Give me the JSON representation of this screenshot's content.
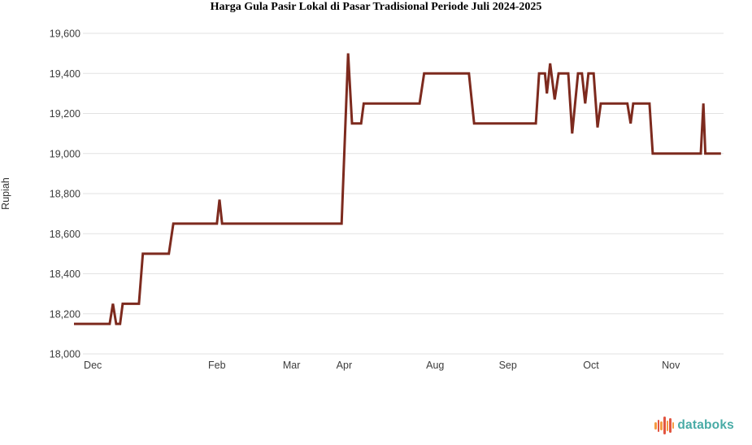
{
  "title": "Harga Gula Pasir Lokal di Pasar Tradisional Periode Juli 2024-2025",
  "chart_data": {
    "type": "line",
    "title": "Harga Gula Pasir Lokal di Pasar Tradisional Periode Juli 2024-2025",
    "xlabel": "",
    "ylabel": "Rupiah",
    "ylim": [
      18000,
      19600
    ],
    "grid": true,
    "legend": false,
    "line_color": "#7D2A1E",
    "grid_color": "#E2E2E2",
    "tick_color": "#3C3C3C",
    "y_ticks": [
      {
        "value": 18000,
        "label": "18,000"
      },
      {
        "value": 18200,
        "label": "18,200"
      },
      {
        "value": 18400,
        "label": "18,400"
      },
      {
        "value": 18600,
        "label": "18,600"
      },
      {
        "value": 18800,
        "label": "18,800"
      },
      {
        "value": 19000,
        "label": "19,000"
      },
      {
        "value": 19200,
        "label": "19,200"
      },
      {
        "value": 19400,
        "label": "19,400"
      },
      {
        "value": 19600,
        "label": "19,600"
      }
    ],
    "x_ticks": [
      {
        "label": "Dec",
        "t": 2.9
      },
      {
        "label": "Feb",
        "t": 22.0
      },
      {
        "label": "Mar",
        "t": 33.5
      },
      {
        "label": "Apr",
        "t": 41.6
      },
      {
        "label": "Aug",
        "t": 55.6
      },
      {
        "label": "Sep",
        "t": 66.8
      },
      {
        "label": "Oct",
        "t": 79.6
      },
      {
        "label": "Nov",
        "t": 91.9
      }
    ],
    "series": [
      {
        "points": [
          [
            0.0,
            18150
          ],
          [
            5.5,
            18150
          ],
          [
            6.0,
            18250
          ],
          [
            6.5,
            18150
          ],
          [
            7.1,
            18150
          ],
          [
            7.5,
            18250
          ],
          [
            10.0,
            18250
          ],
          [
            10.6,
            18500
          ],
          [
            14.6,
            18500
          ],
          [
            15.3,
            18650
          ],
          [
            22.0,
            18650
          ],
          [
            22.4,
            18770
          ],
          [
            22.8,
            18650
          ],
          [
            41.2,
            18650
          ],
          [
            42.2,
            19500
          ],
          [
            42.8,
            19150
          ],
          [
            44.2,
            19150
          ],
          [
            44.6,
            19250
          ],
          [
            53.2,
            19250
          ],
          [
            53.9,
            19400
          ],
          [
            60.8,
            19400
          ],
          [
            61.6,
            19150
          ],
          [
            71.1,
            19150
          ],
          [
            71.6,
            19400
          ],
          [
            72.5,
            19400
          ],
          [
            72.8,
            19300
          ],
          [
            73.3,
            19450
          ],
          [
            74.0,
            19270
          ],
          [
            74.6,
            19400
          ],
          [
            76.1,
            19400
          ],
          [
            76.7,
            19100
          ],
          [
            77.6,
            19400
          ],
          [
            78.2,
            19400
          ],
          [
            78.7,
            19250
          ],
          [
            79.2,
            19400
          ],
          [
            80.0,
            19400
          ],
          [
            80.6,
            19130
          ],
          [
            81.1,
            19250
          ],
          [
            85.2,
            19250
          ],
          [
            85.7,
            19150
          ],
          [
            86.1,
            19250
          ],
          [
            88.6,
            19250
          ],
          [
            89.1,
            19000
          ],
          [
            96.5,
            19000
          ],
          [
            96.9,
            19250
          ],
          [
            97.2,
            19000
          ],
          [
            99.6,
            19000
          ]
        ]
      }
    ]
  },
  "branding": {
    "wordmark": "databoks",
    "wordmark_color": "#48ABA6",
    "icon_bars": [
      {
        "h": 9,
        "color": "#F59B42"
      },
      {
        "h": 15,
        "color": "#E25540"
      },
      {
        "h": 11,
        "color": "#F59B42"
      },
      {
        "h": 22,
        "color": "#E25540"
      },
      {
        "h": 13,
        "color": "#F59B42"
      },
      {
        "h": 18,
        "color": "#E25540"
      },
      {
        "h": 8,
        "color": "#F59B42"
      }
    ]
  }
}
